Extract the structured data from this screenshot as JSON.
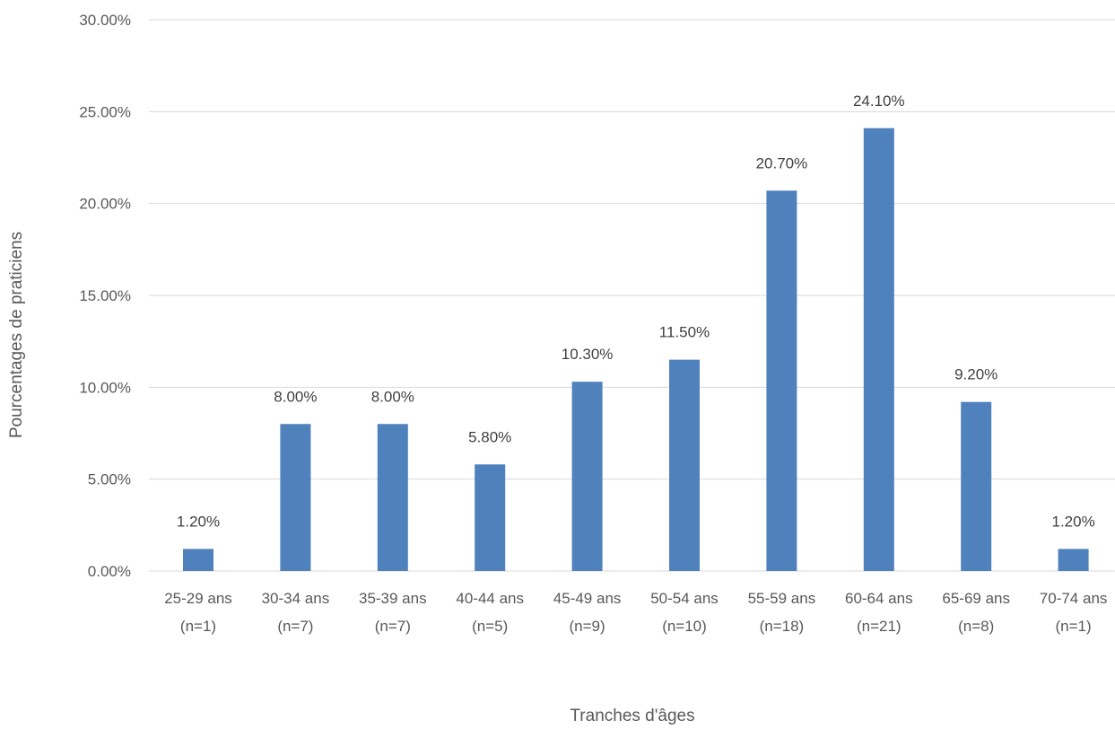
{
  "chart_data": {
    "type": "bar",
    "title": "",
    "xlabel": "Tranches d'âges",
    "ylabel": "Pourcentages de praticiens",
    "ylim": [
      0,
      30
    ],
    "yticks": [
      "0.00%",
      "5.00%",
      "10.00%",
      "15.00%",
      "20.00%",
      "25.00%",
      "30.00%"
    ],
    "ytick_values": [
      0,
      5,
      10,
      15,
      20,
      25,
      30
    ],
    "grid": true,
    "legend": "none",
    "bar_color": "#4F81BD",
    "grid_color": "#D9D9D9",
    "categories": [
      {
        "line1": "25-29 ans",
        "line2": "(n=1)"
      },
      {
        "line1": "30-34 ans",
        "line2": "(n=7)"
      },
      {
        "line1": "35-39 ans",
        "line2": "(n=7)"
      },
      {
        "line1": "40-44 ans",
        "line2": "(n=5)"
      },
      {
        "line1": "45-49 ans",
        "line2": "(n=9)"
      },
      {
        "line1": "50-54 ans",
        "line2": "(n=10)"
      },
      {
        "line1": "55-59 ans",
        "line2": "(n=18)"
      },
      {
        "line1": "60-64 ans",
        "line2": "(n=21)"
      },
      {
        "line1": "65-69 ans",
        "line2": "(n=8)"
      },
      {
        "line1": "70-74 ans",
        "line2": "(n=1)"
      }
    ],
    "values": [
      1.2,
      8.0,
      8.0,
      5.8,
      10.3,
      11.5,
      20.7,
      24.1,
      9.2,
      1.2
    ],
    "data_labels": [
      "1.20%",
      "8.00%",
      "8.00%",
      "5.80%",
      "10.30%",
      "11.50%",
      "20.70%",
      "24.10%",
      "9.20%",
      "1.20%"
    ]
  }
}
